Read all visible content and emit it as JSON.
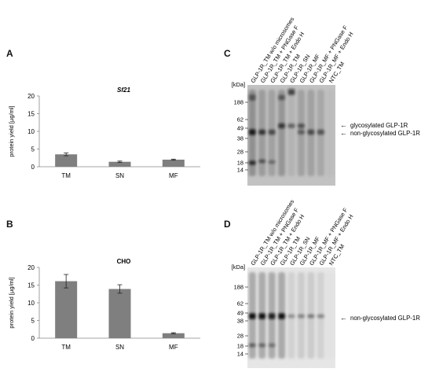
{
  "panels": {
    "A": {
      "letter": "A"
    },
    "B": {
      "letter": "B"
    },
    "C": {
      "letter": "C"
    },
    "D": {
      "letter": "D"
    }
  },
  "chart_data": [
    {
      "type": "bar",
      "panel": "A",
      "title": "Sf21",
      "ylabel": "protein yield [µg/ml]",
      "xlabel": "",
      "categories": [
        "TM",
        "SN",
        "MF"
      ],
      "values": [
        3.5,
        1.4,
        2.0
      ],
      "errors": [
        0.4,
        0.2,
        0.15
      ],
      "ylim": [
        0,
        20
      ],
      "yticks": [
        0,
        5,
        10,
        15,
        20
      ],
      "bar_color": "#7f7f7f",
      "grid": false
    },
    {
      "type": "bar",
      "panel": "B",
      "title": "CHO",
      "ylabel": "protein yield [µg/ml]",
      "xlabel": "",
      "categories": [
        "TM",
        "SN",
        "MF"
      ],
      "values": [
        16.1,
        13.9,
        1.4
      ],
      "errors": [
        1.9,
        1.2,
        0.15
      ],
      "ylim": [
        0,
        20
      ],
      "yticks": [
        0,
        5,
        10,
        15,
        20
      ],
      "bar_color": "#7f7f7f",
      "grid": false
    }
  ],
  "blots": {
    "C": {
      "unit_label": "[kDa]",
      "lanes": [
        "GLP-1R_TM w/o microsomes",
        "GLP-1R_TM + PNGase F",
        "GLP-1R_TM + Endo H",
        "GLP-1R_TM",
        "GLP-1R_SN",
        "GLP-1R_MF",
        "GLP-1R_MF + PNGase F",
        "GLP-1R_MF + Endo H",
        "NTC_TM"
      ],
      "markers": [
        "188",
        "62",
        "49",
        "38",
        "28",
        "18",
        "14"
      ],
      "annotations": [
        {
          "text": "glycosylated GLP-1R",
          "arrow": "←"
        },
        {
          "text": "non-glycosylated GLP-1R",
          "arrow": "←"
        }
      ]
    },
    "D": {
      "unit_label": "[kDa]",
      "lanes": [
        "GLP-1R_TM w/o microsomes",
        "GLP-1R_TM + PNGase F",
        "GLP-1R_TM + Endo H",
        "GLP-1R_TM",
        "GLP-1R_SN",
        "GLP-1R_MF",
        "GLP-1R_MF + PNGase F",
        "GLP-1R_MF + Endo H",
        "NTC_TM"
      ],
      "markers": [
        "188",
        "62",
        "49",
        "38",
        "28",
        "18",
        "14"
      ],
      "annotations": [
        {
          "text": "non-glycosylated GLP-1R",
          "arrow": "←"
        }
      ]
    }
  }
}
